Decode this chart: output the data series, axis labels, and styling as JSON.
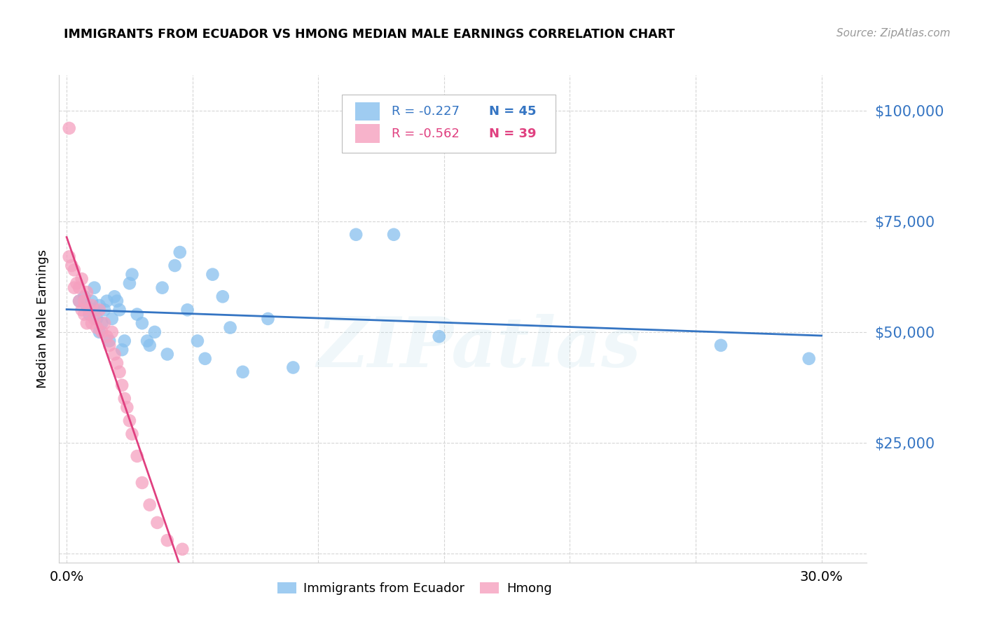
{
  "title": "IMMIGRANTS FROM ECUADOR VS HMONG MEDIAN MALE EARNINGS CORRELATION CHART",
  "source": "Source: ZipAtlas.com",
  "ylabel": "Median Male Earnings",
  "x_ticks": [
    0.0,
    0.05,
    0.1,
    0.15,
    0.2,
    0.25,
    0.3
  ],
  "x_tick_labels_show": [
    "0.0%",
    "",
    "",
    "",
    "",
    "",
    "30.0%"
  ],
  "y_ticks": [
    0,
    25000,
    50000,
    75000,
    100000
  ],
  "ylim": [
    -2000,
    108000
  ],
  "xlim": [
    -0.003,
    0.318
  ],
  "legend_r1": "R = -0.227",
  "legend_n1": "N = 45",
  "legend_r2": "R = -0.562",
  "legend_n2": "N = 39",
  "legend_label1": "Immigrants from Ecuador",
  "legend_label2": "Hmong",
  "blue_scatter_color": "#87c0ee",
  "pink_scatter_color": "#f5a0bf",
  "blue_line_color": "#3575c3",
  "pink_line_color": "#e04080",
  "blue_text_color": "#3575c3",
  "pink_text_color": "#e04080",
  "ytick_color": "#3575c3",
  "watermark": "ZIPatlas",
  "ecuador_x": [
    0.005,
    0.007,
    0.008,
    0.009,
    0.01,
    0.011,
    0.011,
    0.012,
    0.013,
    0.013,
    0.014,
    0.015,
    0.016,
    0.017,
    0.018,
    0.019,
    0.02,
    0.021,
    0.022,
    0.023,
    0.025,
    0.026,
    0.028,
    0.03,
    0.032,
    0.033,
    0.035,
    0.038,
    0.04,
    0.043,
    0.045,
    0.048,
    0.052,
    0.055,
    0.058,
    0.062,
    0.065,
    0.07,
    0.08,
    0.09,
    0.115,
    0.13,
    0.148,
    0.26,
    0.295
  ],
  "ecuador_y": [
    57000,
    58000,
    56000,
    54000,
    57000,
    60000,
    55000,
    53000,
    56000,
    50000,
    52000,
    55000,
    57000,
    48000,
    53000,
    58000,
    57000,
    55000,
    46000,
    48000,
    61000,
    63000,
    54000,
    52000,
    48000,
    47000,
    50000,
    60000,
    45000,
    65000,
    68000,
    55000,
    48000,
    44000,
    63000,
    58000,
    51000,
    41000,
    53000,
    42000,
    72000,
    72000,
    49000,
    47000,
    44000
  ],
  "hmong_x": [
    0.001,
    0.001,
    0.002,
    0.003,
    0.003,
    0.004,
    0.005,
    0.005,
    0.006,
    0.006,
    0.007,
    0.007,
    0.008,
    0.008,
    0.009,
    0.01,
    0.01,
    0.011,
    0.012,
    0.013,
    0.014,
    0.015,
    0.016,
    0.017,
    0.018,
    0.019,
    0.02,
    0.021,
    0.022,
    0.023,
    0.024,
    0.025,
    0.026,
    0.028,
    0.03,
    0.033,
    0.036,
    0.04,
    0.046
  ],
  "hmong_y": [
    96000,
    67000,
    65000,
    64000,
    60000,
    61000,
    57000,
    60000,
    55000,
    62000,
    54000,
    57000,
    52000,
    59000,
    55000,
    56000,
    52000,
    53000,
    51000,
    55000,
    50000,
    52000,
    49000,
    47000,
    50000,
    45000,
    43000,
    41000,
    38000,
    35000,
    33000,
    30000,
    27000,
    22000,
    16000,
    11000,
    7000,
    3000,
    1000
  ]
}
